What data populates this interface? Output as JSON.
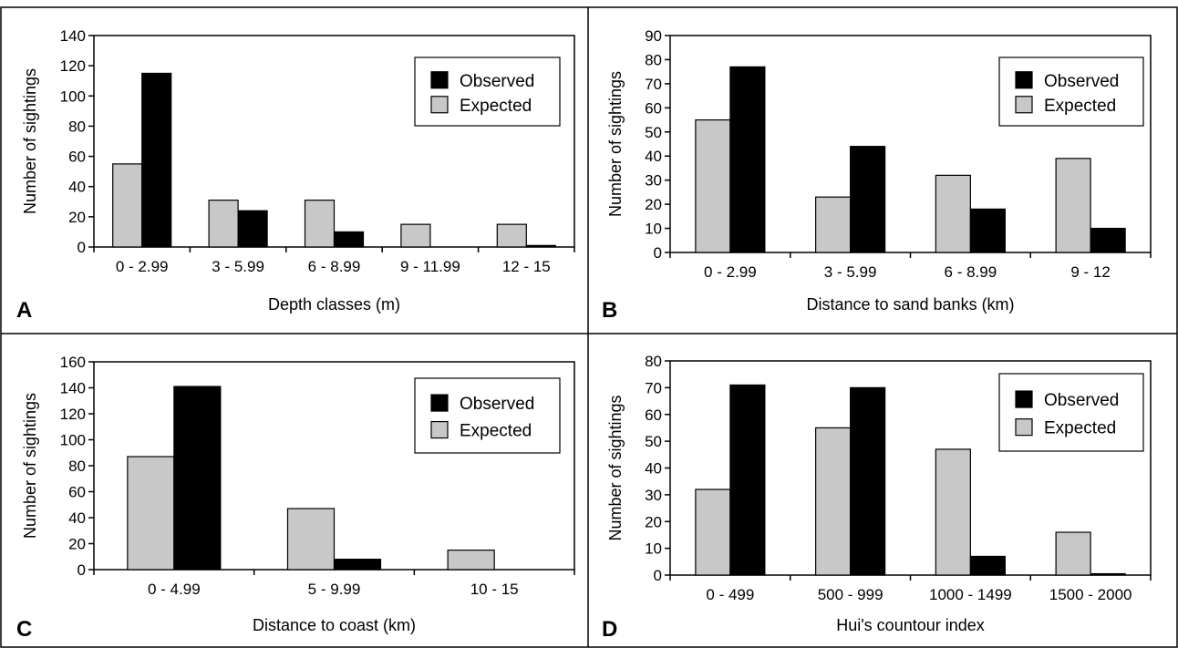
{
  "chart_data": [
    {
      "panel": "A",
      "type": "bar",
      "xlabel": "Depth classes (m)",
      "ylabel": "Number of sightings",
      "categories": [
        "0 - 2.99",
        "3 - 5.99",
        "6 - 8.99",
        "9 - 11.99",
        "12 - 15"
      ],
      "series": [
        {
          "name": "Expected",
          "values": [
            55,
            31,
            31,
            15,
            15
          ],
          "color": "#c8c8c8"
        },
        {
          "name": "Observed",
          "values": [
            115,
            24,
            10,
            0,
            1
          ],
          "color": "#000000"
        }
      ],
      "ylim": [
        0,
        140
      ],
      "yticks": [
        0,
        20,
        40,
        60,
        80,
        100,
        120,
        140
      ],
      "legend": [
        "Observed",
        "Expected"
      ],
      "legend_position": "top-right",
      "grid": false
    },
    {
      "panel": "B",
      "type": "bar",
      "xlabel": "Distance to sand banks (km)",
      "ylabel": "Number of sightings",
      "categories": [
        "0 - 2.99",
        "3 - 5.99",
        "6 - 8.99",
        "9 - 12"
      ],
      "series": [
        {
          "name": "Expected",
          "values": [
            55,
            23,
            32,
            39
          ],
          "color": "#c8c8c8"
        },
        {
          "name": "Observed",
          "values": [
            77,
            44,
            18,
            10
          ],
          "color": "#000000"
        }
      ],
      "ylim": [
        0,
        90
      ],
      "yticks": [
        0,
        10,
        20,
        30,
        40,
        50,
        60,
        70,
        80,
        90
      ],
      "legend": [
        "Observed",
        "Expected"
      ],
      "legend_position": "top-right",
      "grid": false
    },
    {
      "panel": "C",
      "type": "bar",
      "xlabel": "Distance to coast (km)",
      "ylabel": "Number of sightings",
      "categories": [
        "0 - 4.99",
        "5 - 9.99",
        "10 - 15"
      ],
      "series": [
        {
          "name": "Expected",
          "values": [
            87,
            47,
            15
          ],
          "color": "#c8c8c8"
        },
        {
          "name": "Observed",
          "values": [
            141,
            8,
            0
          ],
          "color": "#000000"
        }
      ],
      "ylim": [
        0,
        160
      ],
      "yticks": [
        0,
        20,
        40,
        60,
        80,
        100,
        120,
        140,
        160
      ],
      "legend": [
        "Observed",
        "Expected"
      ],
      "legend_position": "top-right",
      "grid": false
    },
    {
      "panel": "D",
      "type": "bar",
      "xlabel": "Hui's countour index",
      "ylabel": "Number of sightings",
      "categories": [
        "0 - 499",
        "500 - 999",
        "1000 - 1499",
        "1500 - 2000"
      ],
      "series": [
        {
          "name": "Expected",
          "values": [
            32,
            55,
            47,
            16
          ],
          "color": "#c8c8c8"
        },
        {
          "name": "Observed",
          "values": [
            71,
            70,
            7,
            0.5
          ],
          "color": "#000000"
        }
      ],
      "ylim": [
        0,
        80
      ],
      "yticks": [
        0,
        10,
        20,
        30,
        40,
        50,
        60,
        70,
        80
      ],
      "legend": [
        "Observed",
        "Expected"
      ],
      "legend_position": "top-right",
      "grid": false
    }
  ]
}
